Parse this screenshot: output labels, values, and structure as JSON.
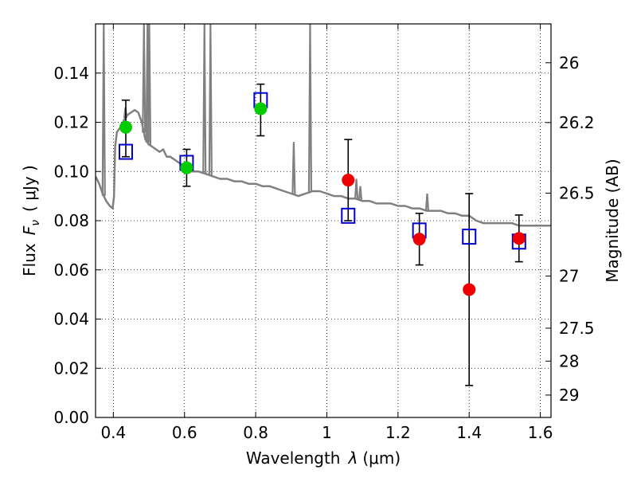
{
  "chart_data": {
    "type": "scatter",
    "xlabel_prefix": "Wavelength",
    "xlabel_symbol": "λ",
    "xlabel_unit": "(μm)",
    "ylabel_prefix": "Flux",
    "ylabel_symbol": "F",
    "ylabel_subscript": "ν",
    "ylabel_unit": "( μJy )",
    "y2label": "Magnitude (AB)",
    "xlim": [
      0.35,
      1.63
    ],
    "ylim": [
      0.0,
      0.16
    ],
    "grid": true,
    "x_ticks": [
      {
        "value": 0.4,
        "label": "0.4"
      },
      {
        "value": 0.6,
        "label": "0.6"
      },
      {
        "value": 0.8,
        "label": "0.8"
      },
      {
        "value": 1.0,
        "label": "1"
      },
      {
        "value": 1.2,
        "label": "1.2"
      },
      {
        "value": 1.4,
        "label": "1.4"
      },
      {
        "value": 1.6,
        "label": "1.6"
      }
    ],
    "y_ticks": [
      {
        "value": 0.0,
        "label": "0.00"
      },
      {
        "value": 0.02,
        "label": "0.02"
      },
      {
        "value": 0.04,
        "label": "0.04"
      },
      {
        "value": 0.06,
        "label": "0.06"
      },
      {
        "value": 0.08,
        "label": "0.08"
      },
      {
        "value": 0.1,
        "label": "0.10"
      },
      {
        "value": 0.12,
        "label": "0.12"
      },
      {
        "value": 0.14,
        "label": "0.14"
      }
    ],
    "y2_ticks": [
      {
        "flux": 0.1442,
        "label": "26"
      },
      {
        "flux": 0.1199,
        "label": "26.2"
      },
      {
        "flux": 0.0912,
        "label": "26.5"
      },
      {
        "flux": 0.0575,
        "label": "27"
      },
      {
        "flux": 0.0363,
        "label": "27.5"
      },
      {
        "flux": 0.0229,
        "label": "28"
      },
      {
        "flux": 0.0091,
        "label": "29"
      }
    ],
    "series": [
      {
        "kind": "model_spectrum",
        "color": "#808080",
        "points": [
          [
            0.35,
            0.098
          ],
          [
            0.36,
            0.095
          ],
          [
            0.37,
            0.091
          ],
          [
            0.38,
            0.088
          ],
          [
            0.39,
            0.086
          ],
          [
            0.398,
            0.085
          ],
          [
            0.402,
            0.09
          ],
          [
            0.405,
            0.11
          ],
          [
            0.41,
            0.116
          ],
          [
            0.42,
            0.118
          ],
          [
            0.43,
            0.121
          ],
          [
            0.44,
            0.123
          ],
          [
            0.45,
            0.124
          ],
          [
            0.46,
            0.125
          ],
          [
            0.47,
            0.124
          ],
          [
            0.48,
            0.12
          ],
          [
            0.49,
            0.113
          ],
          [
            0.5,
            0.111
          ],
          [
            0.51,
            0.11
          ],
          [
            0.52,
            0.109
          ],
          [
            0.53,
            0.108
          ],
          [
            0.54,
            0.109
          ],
          [
            0.55,
            0.106
          ],
          [
            0.56,
            0.106
          ],
          [
            0.57,
            0.105
          ],
          [
            0.58,
            0.104
          ],
          [
            0.59,
            0.103
          ],
          [
            0.6,
            0.102
          ],
          [
            0.62,
            0.1
          ],
          [
            0.64,
            0.1
          ],
          [
            0.66,
            0.099
          ],
          [
            0.68,
            0.098
          ],
          [
            0.7,
            0.097
          ],
          [
            0.72,
            0.097
          ],
          [
            0.74,
            0.096
          ],
          [
            0.76,
            0.096
          ],
          [
            0.78,
            0.095
          ],
          [
            0.8,
            0.095
          ],
          [
            0.82,
            0.094
          ],
          [
            0.84,
            0.094
          ],
          [
            0.86,
            0.093
          ],
          [
            0.88,
            0.092
          ],
          [
            0.9,
            0.091
          ],
          [
            0.92,
            0.09
          ],
          [
            0.94,
            0.091
          ],
          [
            0.96,
            0.092
          ],
          [
            0.98,
            0.092
          ],
          [
            1.0,
            0.091
          ],
          [
            1.02,
            0.09
          ],
          [
            1.04,
            0.09
          ],
          [
            1.06,
            0.089
          ],
          [
            1.08,
            0.089
          ],
          [
            1.1,
            0.088
          ],
          [
            1.12,
            0.088
          ],
          [
            1.14,
            0.087
          ],
          [
            1.16,
            0.087
          ],
          [
            1.18,
            0.087
          ],
          [
            1.2,
            0.086
          ],
          [
            1.22,
            0.086
          ],
          [
            1.24,
            0.085
          ],
          [
            1.26,
            0.085
          ],
          [
            1.28,
            0.084
          ],
          [
            1.3,
            0.084
          ],
          [
            1.32,
            0.084
          ],
          [
            1.34,
            0.083
          ],
          [
            1.36,
            0.083
          ],
          [
            1.38,
            0.082
          ],
          [
            1.4,
            0.082
          ],
          [
            1.42,
            0.08
          ],
          [
            1.44,
            0.079
          ],
          [
            1.46,
            0.079
          ],
          [
            1.48,
            0.079
          ],
          [
            1.5,
            0.079
          ],
          [
            1.52,
            0.079
          ],
          [
            1.54,
            0.078
          ],
          [
            1.56,
            0.078
          ],
          [
            1.58,
            0.078
          ],
          [
            1.6,
            0.078
          ],
          [
            1.63,
            0.078
          ]
        ]
      },
      {
        "kind": "emission_lines",
        "color": "#808080",
        "lines": [
          {
            "x": 0.373,
            "peak": 0.16
          },
          {
            "x": 0.434,
            "peak": 0.126
          },
          {
            "x": 0.486,
            "peak": 0.16
          },
          {
            "x": 0.496,
            "peak": 0.16
          },
          {
            "x": 0.501,
            "peak": 0.16
          },
          {
            "x": 0.656,
            "peak": 0.16
          },
          {
            "x": 0.673,
            "peak": 0.16
          },
          {
            "x": 0.907,
            "peak": 0.112
          },
          {
            "x": 0.953,
            "peak": 0.16
          },
          {
            "x": 1.083,
            "peak": 0.097
          },
          {
            "x": 1.094,
            "peak": 0.094
          },
          {
            "x": 1.282,
            "peak": 0.091
          }
        ]
      },
      {
        "kind": "model_photometry",
        "marker": "open-square",
        "color": "#0000cc",
        "points": [
          {
            "x": 0.435,
            "y": 0.108
          },
          {
            "x": 0.606,
            "y": 0.1035
          },
          {
            "x": 0.814,
            "y": 0.129
          },
          {
            "x": 1.06,
            "y": 0.082
          },
          {
            "x": 1.26,
            "y": 0.076
          },
          {
            "x": 1.4,
            "y": 0.0735
          },
          {
            "x": 1.54,
            "y": 0.0715
          }
        ]
      },
      {
        "kind": "observed",
        "marker": "filled-circle",
        "color": "#00cc00",
        "points": [
          {
            "x": 0.435,
            "y": 0.118,
            "err_lo": 0.012,
            "err_hi": 0.011
          },
          {
            "x": 0.606,
            "y": 0.1015,
            "err_lo": 0.0075,
            "err_hi": 0.0075
          },
          {
            "x": 0.814,
            "y": 0.1255,
            "err_lo": 0.011,
            "err_hi": 0.01
          }
        ]
      },
      {
        "kind": "observed",
        "marker": "filled-circle",
        "color": "#ee0000",
        "points": [
          {
            "x": 1.06,
            "y": 0.0965,
            "err_lo": 0.0165,
            "err_hi": 0.0165
          },
          {
            "x": 1.26,
            "y": 0.0725,
            "err_lo": 0.0105,
            "err_hi": 0.0105
          },
          {
            "x": 1.4,
            "y": 0.052,
            "err_lo": 0.039,
            "err_hi": 0.039
          },
          {
            "x": 1.54,
            "y": 0.0728,
            "err_lo": 0.0095,
            "err_hi": 0.0095
          }
        ]
      }
    ]
  }
}
